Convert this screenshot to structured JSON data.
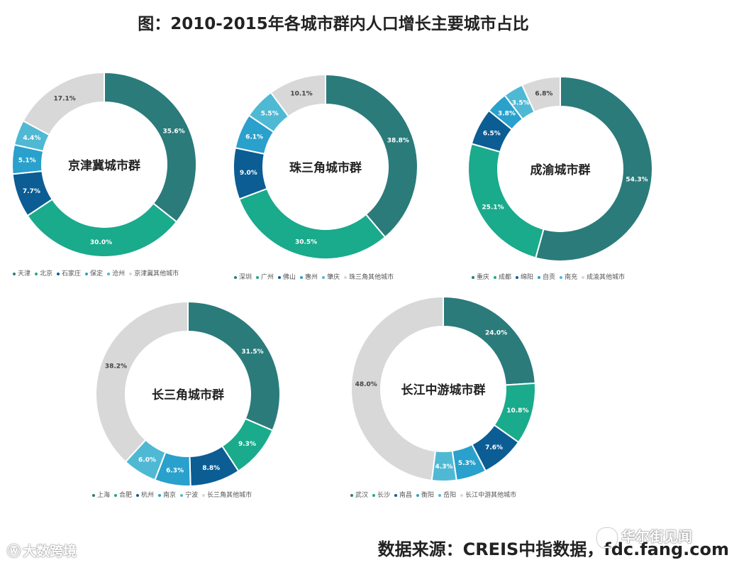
{
  "title": "图：2010-2015年各城市群内人口增长主要城市占比",
  "source": "数据来源：CREIS中指数据，fdc.fang.com",
  "watermarks": {
    "left": "大数跨境",
    "right": "华尔街见闻",
    "left_icon": "weibo-icon",
    "right_icon": "wechat-icon"
  },
  "colors": [
    "#2b7b7b",
    "#1aaa8c",
    "#0b5d94",
    "#2aa0cc",
    "#4fb9d4",
    "#d8d8d8"
  ],
  "chart_data": [
    {
      "type": "pie",
      "title": "京津冀城市群",
      "categories": [
        "天津",
        "北京",
        "石家庄",
        "保定",
        "沧州",
        "京津冀其他城市"
      ],
      "values": [
        35.6,
        30.0,
        7.7,
        5.1,
        4.4,
        17.1
      ],
      "labels": [
        "35.6%",
        "30.0%",
        "7.7%",
        "5.1%",
        "4.4%",
        "17.1%"
      ],
      "legend": "bottom"
    },
    {
      "type": "pie",
      "title": "珠三角城市群",
      "categories": [
        "深圳",
        "广州",
        "佛山",
        "惠州",
        "肇庆",
        "珠三角其他城市"
      ],
      "values": [
        38.8,
        30.5,
        9.0,
        6.1,
        5.5,
        10.1
      ],
      "labels": [
        "38.8%",
        "30.5%",
        "9.0%",
        "6.1%",
        "5.5%",
        "10.1%"
      ],
      "legend": "bottom"
    },
    {
      "type": "pie",
      "title": "成渝城市群",
      "categories": [
        "重庆",
        "成都",
        "绵阳",
        "自贡",
        "南充",
        "成渝其他城市"
      ],
      "values": [
        54.3,
        25.1,
        6.5,
        3.8,
        3.5,
        6.8
      ],
      "labels": [
        "54.3%",
        "25.1%",
        "6.5%",
        "3.8%",
        "3.5%",
        "6.8%"
      ],
      "legend": "bottom"
    },
    {
      "type": "pie",
      "title": "长三角城市群",
      "categories": [
        "上海",
        "合肥",
        "杭州",
        "南京",
        "宁波",
        "长三角其他城市"
      ],
      "values": [
        31.5,
        9.3,
        8.8,
        6.3,
        6.0,
        38.2
      ],
      "labels": [
        "31.5%",
        "9.3%",
        "8.8%",
        "6.3%",
        "6.0%",
        "38.2%"
      ],
      "legend": "bottom"
    },
    {
      "type": "pie",
      "title": "长江中游城市群",
      "categories": [
        "武汉",
        "长沙",
        "南昌",
        "衡阳",
        "岳阳",
        "长江中游其他城市"
      ],
      "values": [
        24.0,
        10.8,
        7.6,
        5.3,
        4.3,
        48.0
      ],
      "labels": [
        "24.0%",
        "10.8%",
        "7.6%",
        "5.3%",
        "4.3%",
        "48.0%"
      ],
      "legend": "bottom"
    }
  ]
}
